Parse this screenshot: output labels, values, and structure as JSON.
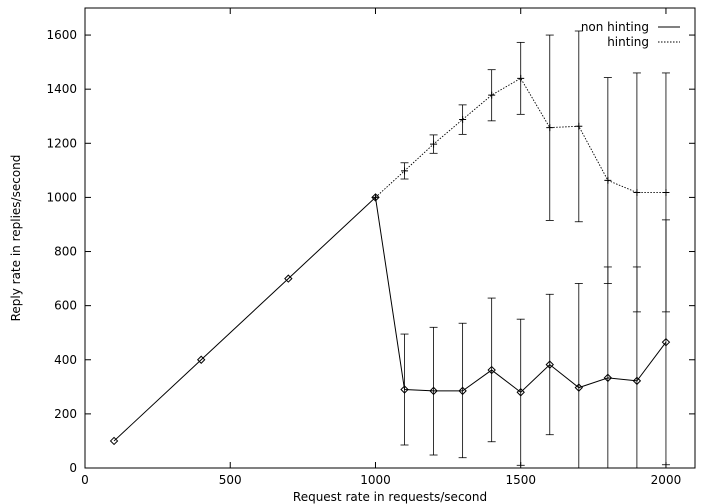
{
  "chart_data": {
    "type": "line",
    "xlabel": "Request rate in requests/second",
    "ylabel": "Reply rate in replies/second",
    "xlim": [
      0,
      2100
    ],
    "ylim": [
      0,
      1700
    ],
    "xticks": [
      0,
      500,
      1000,
      1500,
      2000
    ],
    "yticks": [
      0,
      200,
      400,
      600,
      800,
      1000,
      1200,
      1400,
      1600
    ],
    "grid": false,
    "legend_position": "top-right",
    "series": [
      {
        "name": "non hinting",
        "marker": "diamond",
        "line_style": "solid",
        "color": "#000000",
        "points": [
          {
            "x": 100,
            "y": 100
          },
          {
            "x": 400,
            "y": 400
          },
          {
            "x": 700,
            "y": 700
          },
          {
            "x": 1000,
            "y": 1000
          },
          {
            "x": 1100,
            "y": 290,
            "ymin": 85,
            "ymax": 495
          },
          {
            "x": 1200,
            "y": 285,
            "ymin": 48,
            "ymax": 520
          },
          {
            "x": 1300,
            "y": 285,
            "ymin": 38,
            "ymax": 535
          },
          {
            "x": 1400,
            "y": 362,
            "ymin": 97,
            "ymax": 628
          },
          {
            "x": 1500,
            "y": 280,
            "ymin": 10,
            "ymax": 550
          },
          {
            "x": 1600,
            "y": 382,
            "ymin": 123,
            "ymax": 642
          },
          {
            "x": 1700,
            "y": 297,
            "ymin": 0,
            "ymax": 682
          },
          {
            "x": 1800,
            "y": 333,
            "ymin": 0,
            "ymax": 743
          },
          {
            "x": 1900,
            "y": 322,
            "ymin": 0,
            "ymax": 743
          },
          {
            "x": 2000,
            "y": 465,
            "ymin": 12,
            "ymax": 917
          }
        ]
      },
      {
        "name": "hinting",
        "marker": "plus",
        "line_style": "dotted",
        "color": "#000000",
        "points": [
          {
            "x": 1000,
            "y": 1000
          },
          {
            "x": 1100,
            "y": 1098,
            "ymin": 1068,
            "ymax": 1128
          },
          {
            "x": 1200,
            "y": 1197,
            "ymin": 1163,
            "ymax": 1231
          },
          {
            "x": 1300,
            "y": 1288,
            "ymin": 1233,
            "ymax": 1342
          },
          {
            "x": 1400,
            "y": 1378,
            "ymin": 1283,
            "ymax": 1472
          },
          {
            "x": 1500,
            "y": 1440,
            "ymin": 1307,
            "ymax": 1573
          },
          {
            "x": 1600,
            "y": 1258,
            "ymin": 915,
            "ymax": 1600
          },
          {
            "x": 1700,
            "y": 1263,
            "ymin": 910,
            "ymax": 1615
          },
          {
            "x": 1800,
            "y": 1063,
            "ymin": 682,
            "ymax": 1443
          },
          {
            "x": 1900,
            "y": 1018,
            "ymin": 577,
            "ymax": 1460
          },
          {
            "x": 2000,
            "y": 1018,
            "ymin": 577,
            "ymax": 1460
          }
        ]
      }
    ]
  }
}
